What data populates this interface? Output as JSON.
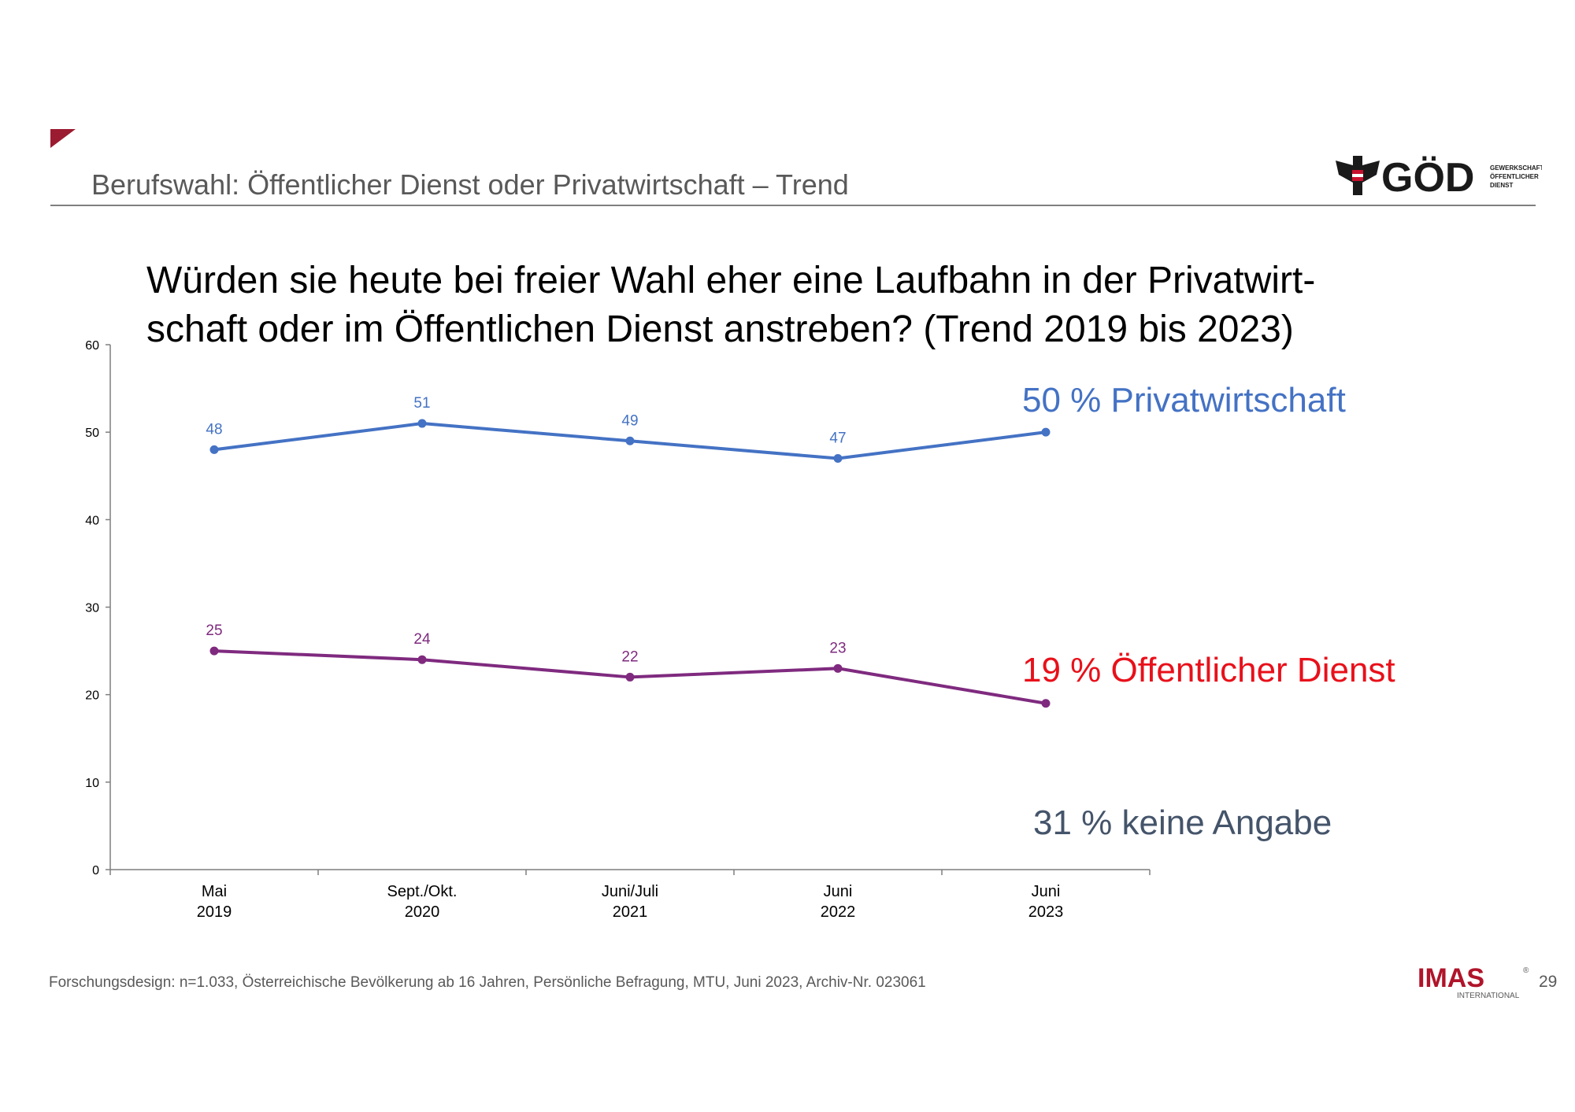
{
  "slide": {
    "title": "Berufswahl: Öffentlicher Dienst oder Privatwirtschaft – Trend",
    "question_line1": "Würden sie heute bei freier Wahl eher eine Laufbahn in der Privatwirt-",
    "question_line2": "schaft oder im Öffentlichen Dienst anstreben? (Trend 2019 bis 2023)",
    "footnote": "Forschungsdesign: n=1.033, Österreichische Bevölkerung ab 16 Jahren, Persönliche Befragung, MTU, Juni 2023, Archiv-Nr. 023061",
    "page_number": "29"
  },
  "logos": {
    "god": {
      "name": "GÖD",
      "text": "GÖD",
      "sub": [
        "GEWERKSCHAFT",
        "ÖFFENTLICHER",
        "DIENST"
      ]
    },
    "imas": {
      "name": "IMAS",
      "text": "IMAS",
      "sub": "INTERNATIONAL",
      "registered": "®"
    }
  },
  "colors": {
    "accent": "#9b1b30",
    "privat": "#4472c4",
    "oeffentlich": "#7f2a7f",
    "oeffentlich_label": "#e8101a",
    "keine": "#44546a",
    "axis": "#7f7f7f"
  },
  "chart_data": {
    "type": "line",
    "title": "Würden sie heute bei freier Wahl eher eine Laufbahn in der Privatwirtschaft oder im Öffentlichen Dienst anstreben? (Trend 2019 bis 2023)",
    "categories": [
      [
        "Mai",
        "2019"
      ],
      [
        "Sept./Okt.",
        "2020"
      ],
      [
        "Juni/Juli",
        "2021"
      ],
      [
        "Juni",
        "2022"
      ],
      [
        "Juni",
        "2023"
      ]
    ],
    "ylim": [
      0,
      60
    ],
    "yticks": [
      0,
      10,
      20,
      30,
      40,
      50,
      60
    ],
    "xlabel": "",
    "ylabel": "",
    "grid": false,
    "series": [
      {
        "name": "Privatwirtschaft",
        "key": "privat",
        "values": [
          48,
          51,
          49,
          47,
          50
        ],
        "show_labels": [
          true,
          true,
          true,
          true,
          false
        ]
      },
      {
        "name": "Öffentlicher Dienst",
        "key": "oeffentlich",
        "values": [
          25,
          24,
          22,
          23,
          19
        ],
        "show_labels": [
          true,
          true,
          true,
          true,
          false
        ]
      }
    ],
    "annotations": [
      {
        "text": "50 % Privatwirtschaft",
        "key": "privat"
      },
      {
        "text": "19 % Öffentlicher Dienst",
        "key": "oeffentlich_label"
      },
      {
        "text": "31 % keine Angabe",
        "key": "keine"
      }
    ]
  }
}
